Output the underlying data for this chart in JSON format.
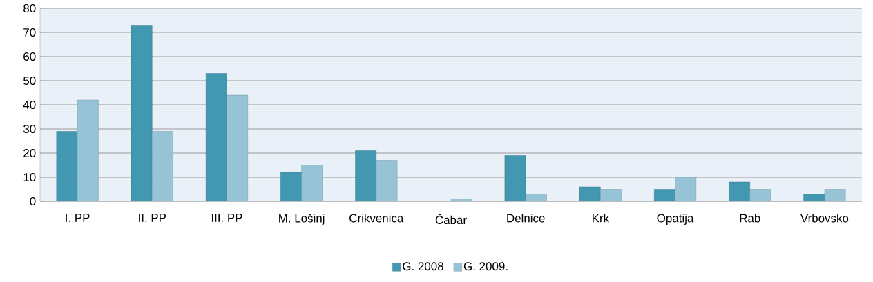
{
  "chart_data": {
    "type": "bar",
    "categories": [
      "I. PP",
      "II. PP",
      "III. PP",
      "M. Lošinj",
      "Crikvenica",
      "Čabar",
      "Delnice",
      "Krk",
      "Opatija",
      "Rab",
      "Vrbovsko"
    ],
    "series": [
      {
        "name": "G. 2008",
        "color": "#4298b0",
        "values": [
          29,
          73,
          53,
          12,
          21,
          0,
          19,
          6,
          5,
          8,
          3
        ]
      },
      {
        "name": "G. 2009.",
        "color": "#96c4d6",
        "values": [
          42,
          29,
          44,
          15,
          17,
          1,
          3,
          5,
          10,
          5,
          5
        ]
      }
    ],
    "ylim": [
      0,
      80
    ],
    "yticks": [
      0,
      10,
      20,
      30,
      40,
      50,
      60,
      70,
      80
    ],
    "grid": "y",
    "legend": "bottom"
  }
}
